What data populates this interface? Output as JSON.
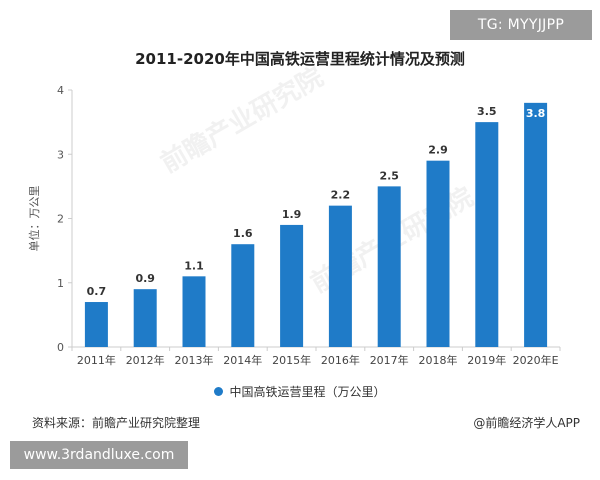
{
  "header": {
    "tg_badge": "TG: MYYJJPP"
  },
  "footer": {
    "source": "资料来源：前瞻产业研究院整理",
    "brand": "@前瞻经济学人APP",
    "url_badge": "www.3rdandluxe.com"
  },
  "watermark": {
    "text": "前瞻产业研究院"
  },
  "colors": {
    "bar": "#1f7bc8",
    "axis": "#cccccc",
    "grid": "#e6e6e6",
    "badge": "#9b9b9b"
  },
  "chart_data": {
    "type": "bar",
    "title": "2011-2020年中国高铁运营里程统计情况及预测",
    "ylabel": "单位：万公里",
    "xlabel": "",
    "ylim": [
      0,
      4
    ],
    "yticks": [
      0,
      1,
      2,
      3,
      4
    ],
    "grid": false,
    "legend_position": "bottom",
    "categories": [
      "2011年",
      "2012年",
      "2013年",
      "2014年",
      "2015年",
      "2016年",
      "2017年",
      "2018年",
      "2019年",
      "2020年E"
    ],
    "series": [
      {
        "name": "中国高铁运营里程（万公里）",
        "values": [
          0.7,
          0.9,
          1.1,
          1.6,
          1.9,
          2.2,
          2.5,
          2.9,
          3.5,
          3.8
        ]
      }
    ]
  }
}
